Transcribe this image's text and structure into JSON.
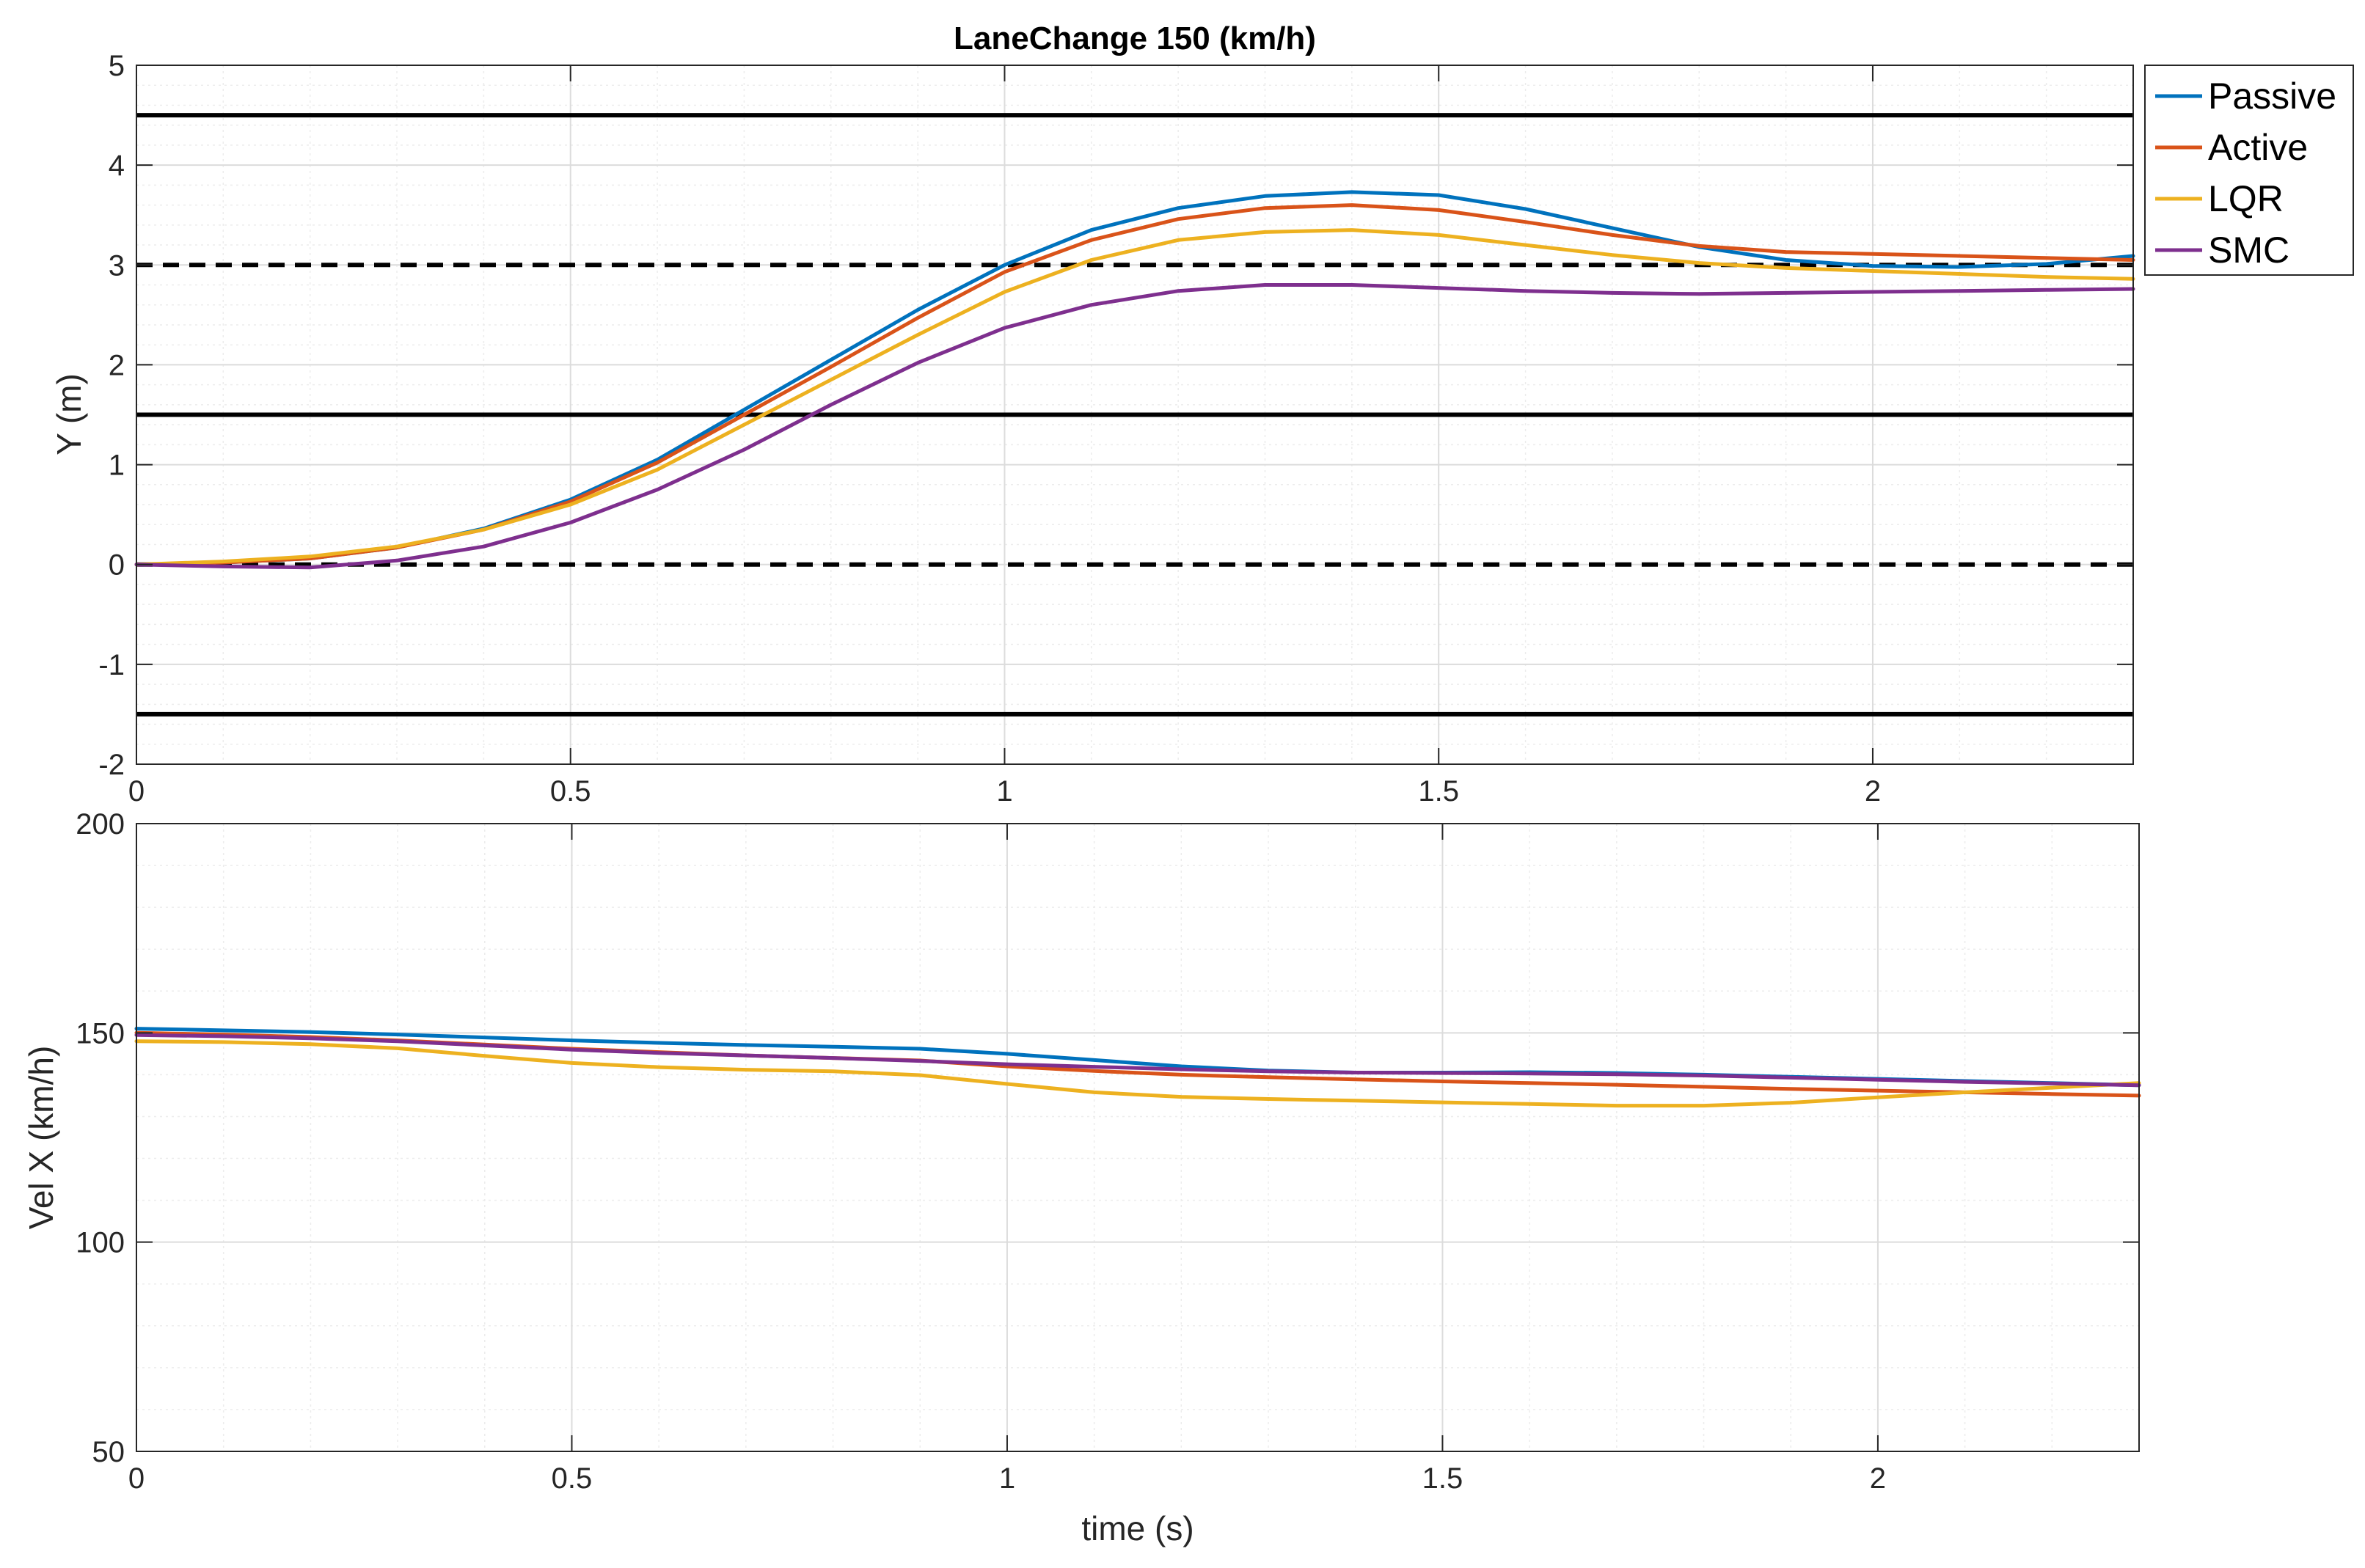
{
  "figure": {
    "title": "LaneChange 150 (km/h)"
  },
  "colors": {
    "passive": "#0072BD",
    "active": "#D95319",
    "lqr": "#EDB120",
    "smc": "#7E2F8E",
    "lane_boundary": "#000000",
    "lane_center": "#000000"
  },
  "chart_data": [
    {
      "type": "line",
      "title": "LaneChange 150 (km/h)",
      "xlabel": "",
      "ylabel": "Y (m)",
      "xlim": [
        0,
        2.3
      ],
      "ylim": [
        -2,
        5
      ],
      "xticks": [
        0,
        0.5,
        1,
        1.5,
        2
      ],
      "xtick_labels": [
        "0",
        "0.5",
        "1",
        "1.5",
        "2"
      ],
      "yticks": [
        -2,
        -1,
        0,
        1,
        2,
        3,
        4,
        5
      ],
      "ytick_labels": [
        "-2",
        "-1",
        "0",
        "1",
        "2",
        "3",
        "4",
        "5"
      ],
      "grid": true,
      "minor_grid": true,
      "legend": {
        "position": "top-right-outside",
        "entries": [
          "Passive",
          "Active",
          "LQR",
          "SMC"
        ]
      },
      "reference_lines": [
        {
          "y": 4.5,
          "style": "solid"
        },
        {
          "y": 3,
          "style": "dashed"
        },
        {
          "y": 1.5,
          "style": "solid"
        },
        {
          "y": 0,
          "style": "dashed"
        },
        {
          "y": -1.5,
          "style": "solid"
        }
      ],
      "x": [
        0,
        0.1,
        0.2,
        0.3,
        0.4,
        0.5,
        0.6,
        0.7,
        0.8,
        0.9,
        1.0,
        1.1,
        1.2,
        1.3,
        1.4,
        1.5,
        1.6,
        1.7,
        1.8,
        1.9,
        2.0,
        2.1,
        2.2,
        2.3
      ],
      "series": [
        {
          "name": "Passive",
          "color_key": "passive",
          "values": [
            0,
            0.02,
            0.06,
            0.17,
            0.36,
            0.65,
            1.05,
            1.55,
            2.05,
            2.55,
            3.0,
            3.35,
            3.57,
            3.69,
            3.73,
            3.7,
            3.56,
            3.37,
            3.18,
            3.05,
            2.99,
            2.98,
            3.01,
            3.09
          ]
        },
        {
          "name": "Active",
          "color_key": "active",
          "values": [
            0,
            0.02,
            0.06,
            0.17,
            0.35,
            0.63,
            1.02,
            1.5,
            1.98,
            2.47,
            2.93,
            3.25,
            3.46,
            3.57,
            3.6,
            3.55,
            3.43,
            3.3,
            3.19,
            3.13,
            3.11,
            3.09,
            3.07,
            3.05
          ]
        },
        {
          "name": "LQR",
          "color_key": "lqr",
          "values": [
            0,
            0.03,
            0.08,
            0.18,
            0.35,
            0.6,
            0.95,
            1.4,
            1.85,
            2.3,
            2.73,
            3.05,
            3.25,
            3.33,
            3.35,
            3.3,
            3.2,
            3.1,
            3.02,
            2.97,
            2.94,
            2.91,
            2.88,
            2.86
          ]
        },
        {
          "name": "SMC",
          "color_key": "smc",
          "values": [
            0,
            -0.02,
            -0.03,
            0.04,
            0.18,
            0.42,
            0.75,
            1.15,
            1.6,
            2.02,
            2.37,
            2.6,
            2.74,
            2.8,
            2.8,
            2.77,
            2.74,
            2.72,
            2.71,
            2.72,
            2.73,
            2.74,
            2.75,
            2.76
          ]
        }
      ]
    },
    {
      "type": "line",
      "title": "",
      "xlabel": "time (s)",
      "ylabel": "Vel X (km/h)",
      "xlim": [
        0,
        2.3
      ],
      "ylim": [
        50,
        200
      ],
      "xticks": [
        0,
        0.5,
        1,
        1.5,
        2
      ],
      "xtick_labels": [
        "0",
        "0.5",
        "1",
        "1.5",
        "2"
      ],
      "yticks": [
        50,
        100,
        150,
        200
      ],
      "ytick_labels": [
        "50",
        "100",
        "150",
        "200"
      ],
      "grid": true,
      "minor_grid": true,
      "x": [
        0,
        0.1,
        0.2,
        0.3,
        0.4,
        0.5,
        0.6,
        0.7,
        0.8,
        0.9,
        1.0,
        1.1,
        1.2,
        1.3,
        1.4,
        1.5,
        1.6,
        1.7,
        1.8,
        1.9,
        2.0,
        2.1,
        2.2,
        2.3
      ],
      "series": [
        {
          "name": "Passive",
          "color_key": "passive",
          "values": [
            151,
            150.6,
            150.2,
            149.6,
            148.9,
            148.2,
            147.6,
            147.1,
            146.7,
            146.2,
            145.0,
            143.5,
            142.0,
            141.0,
            140.5,
            140.5,
            140.6,
            140.4,
            140.0,
            139.5,
            139.0,
            138.5,
            138.0,
            137.5
          ]
        },
        {
          "name": "Active",
          "color_key": "active",
          "values": [
            150,
            149.6,
            149.0,
            148.2,
            147.2,
            146.2,
            145.4,
            144.6,
            144.0,
            143.4,
            142.0,
            140.9,
            140.0,
            139.4,
            138.9,
            138.4,
            138.0,
            137.6,
            137.1,
            136.6,
            136.2,
            135.8,
            135.4,
            135.0
          ]
        },
        {
          "name": "LQR",
          "color_key": "lqr",
          "values": [
            148,
            147.8,
            147.3,
            146.3,
            144.5,
            142.8,
            141.8,
            141.2,
            140.8,
            139.9,
            137.8,
            135.8,
            134.7,
            134.2,
            133.8,
            133.4,
            133.0,
            132.6,
            132.6,
            133.3,
            134.6,
            135.8,
            136.9,
            138.0
          ]
        },
        {
          "name": "SMC",
          "color_key": "smc",
          "values": [
            149.5,
            149.2,
            148.7,
            148.0,
            147.0,
            146.0,
            145.2,
            144.6,
            144.0,
            143.3,
            142.5,
            141.9,
            141.3,
            140.8,
            140.5,
            140.4,
            140.3,
            140.1,
            139.8,
            139.3,
            138.8,
            138.3,
            137.9,
            137.5
          ]
        }
      ]
    }
  ]
}
